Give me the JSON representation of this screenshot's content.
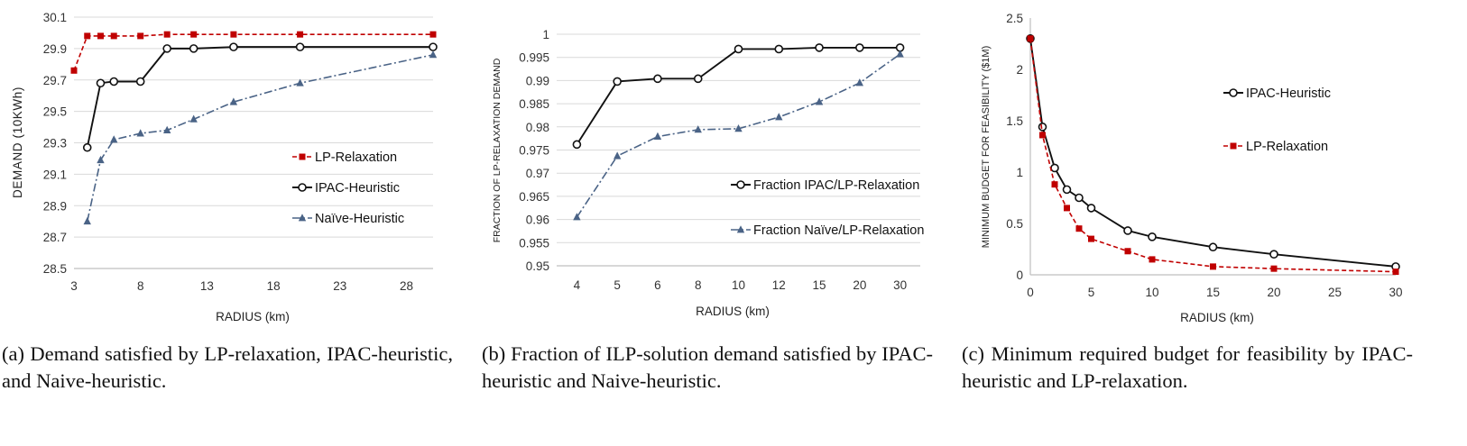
{
  "figure_captions": {
    "a": "(a) Demand satisfied by LP-relaxation, IPAC-heuristic, and Naive-heuristic.",
    "b": "(b) Fraction of ILP-solution demand satisfied by IPAC-heuristic and Naive-heuristic.",
    "c": "(c) Minimum required budget for feasibility by IPAC-heuristic and LP-relaxation."
  },
  "colors": {
    "lp": "#c00000",
    "ipac": "#111111",
    "naive": "#4a6386",
    "grid": "#d9d9d9",
    "axis": "#bfbfbf"
  },
  "chart_data": [
    {
      "id": "a",
      "type": "line",
      "title": "",
      "xlabel": "RADIUS (km)",
      "ylabel": "DEMAND (10KWh)",
      "xlim": [
        3,
        30
      ],
      "ylim": [
        28.5,
        30.1
      ],
      "xticks": [
        3,
        8,
        13,
        18,
        23,
        28
      ],
      "yticks": [
        28.5,
        28.7,
        28.9,
        29.1,
        29.3,
        29.5,
        29.7,
        29.9,
        30.1
      ],
      "yticks_labels": [
        "28.5",
        "28.7",
        "28.9",
        "29.1",
        "29.3",
        "29.5",
        "29.7",
        "29.9",
        "30.1"
      ],
      "grid": "horizontal",
      "legend_position": "center-right",
      "series": [
        {
          "name": "LP-Relaxation",
          "style": "dashed",
          "marker": "square",
          "color_key": "lp",
          "x": [
            3,
            4,
            5,
            6,
            8,
            10,
            12,
            15,
            20,
            30
          ],
          "y": [
            29.76,
            29.98,
            29.98,
            29.98,
            29.98,
            29.99,
            29.99,
            29.99,
            29.99,
            29.99
          ]
        },
        {
          "name": "IPAC-Heuristic",
          "style": "solid",
          "marker": "circle",
          "color_key": "ipac",
          "x": [
            4,
            5,
            6,
            8,
            10,
            12,
            15,
            20,
            30
          ],
          "y": [
            29.27,
            29.68,
            29.69,
            29.69,
            29.9,
            29.9,
            29.91,
            29.91,
            29.91
          ]
        },
        {
          "name": "Naïve-Heuristic",
          "style": "dashdot",
          "marker": "triangle",
          "color_key": "naive",
          "x": [
            4,
            5,
            6,
            8,
            10,
            12,
            15,
            20,
            30
          ],
          "y": [
            28.8,
            29.19,
            29.32,
            29.36,
            29.38,
            29.45,
            29.56,
            29.68,
            29.86
          ]
        }
      ]
    },
    {
      "id": "b",
      "type": "line",
      "title": "",
      "xlabel": "RADIUS (km)",
      "ylabel": "FRACTION OF LP-RELAXATION DEMAND",
      "categories": [
        "4",
        "5",
        "6",
        "8",
        "10",
        "12",
        "15",
        "20",
        "30"
      ],
      "ylim": [
        0.95,
        1.0
      ],
      "yticks": [
        0.95,
        0.955,
        0.96,
        0.965,
        0.97,
        0.975,
        0.98,
        0.985,
        0.99,
        0.995,
        1.0
      ],
      "yticks_labels": [
        "0.95",
        "0.955",
        "0.96",
        "0.965",
        "0.97",
        "0.975",
        "0.98",
        "0.985",
        "0.99",
        "0.995",
        "1"
      ],
      "grid": "horizontal",
      "legend_position": "center-right",
      "series": [
        {
          "name": "Fraction IPAC/LP-Relaxation",
          "style": "solid",
          "marker": "circle",
          "color_key": "ipac",
          "values": [
            0.9762,
            0.9898,
            0.9904,
            0.9904,
            0.9968,
            0.9968,
            0.9971,
            0.9971,
            0.9971
          ]
        },
        {
          "name": "Fraction Naïve/LP-Relaxation",
          "style": "dashdot",
          "marker": "triangle",
          "color_key": "naive",
          "values": [
            0.9605,
            0.9737,
            0.9779,
            0.9794,
            0.9796,
            0.9821,
            0.9854,
            0.9895,
            0.9957
          ]
        }
      ]
    },
    {
      "id": "c",
      "type": "line",
      "title": "",
      "xlabel": "RADIUS (km)",
      "ylabel": "MINIMUM BUDGET FOR FEASIBILITY ($1M)",
      "xlim": [
        0,
        30
      ],
      "ylim": [
        0,
        2.5
      ],
      "xticks": [
        0,
        5,
        10,
        15,
        20,
        25,
        30
      ],
      "yticks": [
        0,
        0.5,
        1,
        1.5,
        2,
        2.5
      ],
      "yticks_labels": [
        "0",
        "0.5",
        "1",
        "1.5",
        "2",
        "2.5"
      ],
      "grid": "none",
      "legend_position": "upper-right",
      "series": [
        {
          "name": "IPAC-Heuristic",
          "style": "solid",
          "marker": "circle",
          "color_key": "ipac",
          "x": [
            0,
            1,
            2,
            3,
            4,
            5,
            8,
            10,
            15,
            20,
            30
          ],
          "y": [
            2.3,
            1.44,
            1.04,
            0.83,
            0.75,
            0.65,
            0.43,
            0.37,
            0.27,
            0.2,
            0.08
          ]
        },
        {
          "name": "LP-Relaxation",
          "style": "dashed",
          "marker": "square",
          "color_key": "lp",
          "x": [
            0,
            1,
            2,
            3,
            4,
            5,
            8,
            10,
            15,
            20,
            30
          ],
          "y": [
            2.3,
            1.36,
            0.88,
            0.65,
            0.45,
            0.35,
            0.23,
            0.15,
            0.08,
            0.06,
            0.03
          ]
        }
      ]
    }
  ]
}
